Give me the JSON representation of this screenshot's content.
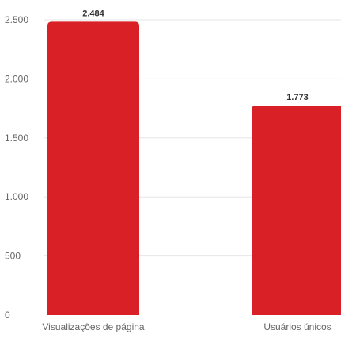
{
  "chart_data": {
    "type": "bar",
    "categories": [
      "Visualizações de página",
      "Usuários únicos"
    ],
    "values": [
      2484,
      1773
    ],
    "value_labels": [
      "2.484",
      "1.773"
    ],
    "title": "",
    "xlabel": "",
    "ylabel": "",
    "ylim": [
      0,
      2500
    ],
    "yticks": [
      0,
      500,
      1000,
      1500,
      2000,
      2500
    ],
    "ytick_labels": [
      "0",
      "500",
      "1.000",
      "1.500",
      "2.000",
      "2.500"
    ],
    "grid": true,
    "legend": "none",
    "bar_color": "#d92027",
    "grid_color": "#e6e6e6"
  }
}
